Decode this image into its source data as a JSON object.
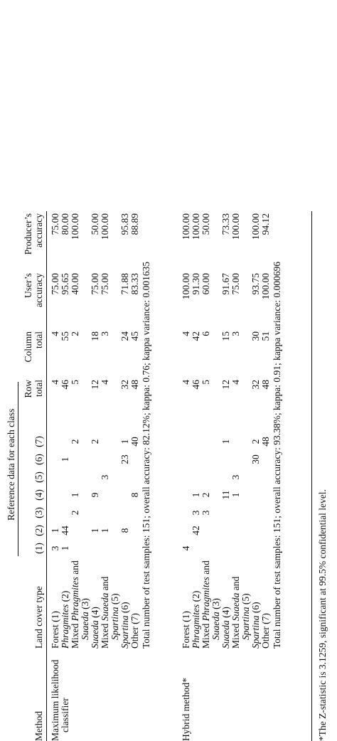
{
  "header": {
    "method": "Method",
    "land_cover_type": "Land cover type",
    "reference_data": "Reference data for each class",
    "class_nums": [
      "(1)",
      "(2)",
      "(3)",
      "(4)",
      "(5)",
      "(6)",
      "(7)"
    ],
    "row_total": [
      "Row",
      "total"
    ],
    "column_total": [
      "Column",
      "total"
    ],
    "users_accuracy": [
      "User’s",
      "accuracy"
    ],
    "producers_accuracy": [
      "Producer’s",
      "accuracy"
    ]
  },
  "sections": [
    {
      "method_lines": [
        "Maximum likelihood",
        "classifier"
      ],
      "summary": "Total number of test samples: 151; overall accuracy: 82.12%; kappa: 0.76; kappa variance: 0.001635",
      "rows": [
        {
          "label_main": "Forest (1)",
          "cells": [
            "3",
            "1",
            "",
            "",
            "",
            "",
            ""
          ],
          "row_total": "4",
          "column_total": "4",
          "users": "75.00",
          "producers": "75.00"
        },
        {
          "label_main": "Phragmites",
          "label_tail": " (2)",
          "cells": [
            "1",
            "44",
            "",
            "",
            "",
            "1",
            ""
          ],
          "row_total": "46",
          "column_total": "55",
          "users": "95.65",
          "producers": "80.00"
        },
        {
          "label_main": "Mixed ",
          "label_ital": "Phragmites",
          "label_after": " and",
          "label_cont_ital": "Suaeda",
          "label_cont_tail": " (3)",
          "cells": [
            "",
            "",
            "2",
            "1",
            "",
            "",
            "2"
          ],
          "row_total": "5",
          "column_total": "2",
          "users": "40.00",
          "producers": "100.00"
        },
        {
          "label_main": "Suaeda",
          "label_tail": " (4)",
          "cells": [
            "",
            "1",
            "",
            "9",
            "",
            "",
            "2"
          ],
          "row_total": "12",
          "column_total": "18",
          "users": "75.00",
          "producers": "50.00"
        },
        {
          "label_main": "Mixed ",
          "label_ital": "Suaeda",
          "label_after": " and",
          "label_cont_ital": "Spartina",
          "label_cont_tail": " (5)",
          "cells": [
            "",
            "1",
            "",
            "",
            "3",
            "",
            ""
          ],
          "row_total": "4",
          "column_total": "3",
          "users": "75.00",
          "producers": "100.00"
        },
        {
          "label_main": "Spartina",
          "label_tail": " (6)",
          "cells": [
            "",
            "8",
            "",
            "",
            "",
            "23",
            "1"
          ],
          "row_total": "32",
          "column_total": "24",
          "users": "71.88",
          "producers": "95.83"
        },
        {
          "label_main": "Other (7)",
          "cells": [
            "",
            "",
            "",
            "8",
            "",
            "",
            "40"
          ],
          "row_total": "48",
          "column_total": "45",
          "users": "83.33",
          "producers": "88.89"
        }
      ]
    },
    {
      "method_lines": [
        "Hybrid method*"
      ],
      "summary": "Total number of test samples: 151; overall accuracy: 93.38%; kappa: 0.91; kappa variance: 0.000696",
      "rows": [
        {
          "label_main": "Forest (1)",
          "cells": [
            "4",
            "",
            "",
            "",
            "",
            "",
            ""
          ],
          "row_total": "4",
          "column_total": "4",
          "users": "100.00",
          "producers": "100.00"
        },
        {
          "label_main": "Phragmites",
          "label_tail": " (2)",
          "cells": [
            "",
            "42",
            "3",
            "1",
            "",
            "",
            ""
          ],
          "row_total": "46",
          "column_total": "42",
          "users": "91.30",
          "producers": "100.00"
        },
        {
          "label_main": "Mixed ",
          "label_ital": "Phragmites",
          "label_after": " and",
          "label_cont_ital": "Suaeda",
          "label_cont_tail": " (3)",
          "cells": [
            "",
            "",
            "3",
            "2",
            "",
            "",
            ""
          ],
          "row_total": "5",
          "column_total": "6",
          "users": "60.00",
          "producers": "50.00"
        },
        {
          "label_main": "Suaeda",
          "label_tail": " (4)",
          "cells": [
            "",
            "",
            "",
            "11",
            "",
            "",
            "1"
          ],
          "row_total": "12",
          "column_total": "15",
          "users": "91.67",
          "producers": "73.33"
        },
        {
          "label_main": "Mixed ",
          "label_ital": "Suaeda",
          "label_after": " and",
          "label_cont_ital": "Spartina",
          "label_cont_tail": " (5)",
          "cells": [
            "",
            "",
            "",
            "1",
            "3",
            "",
            ""
          ],
          "row_total": "4",
          "column_total": "3",
          "users": "75.00",
          "producers": "100.00"
        },
        {
          "label_main": "Spartina",
          "label_tail": " (6)",
          "cells": [
            "",
            "",
            "",
            "",
            "",
            "30",
            "2"
          ],
          "row_total": "32",
          "column_total": "30",
          "users": "93.75",
          "producers": "100.00"
        },
        {
          "label_main": "Other (7)",
          "cells": [
            "",
            "",
            "",
            "",
            "",
            "",
            "48"
          ],
          "row_total": "48",
          "column_total": "51",
          "users": "100.00",
          "producers": "94.12"
        }
      ]
    }
  ],
  "footnote": "*The Z-statistic is 3.1259, significant at 99.5% confidential level."
}
